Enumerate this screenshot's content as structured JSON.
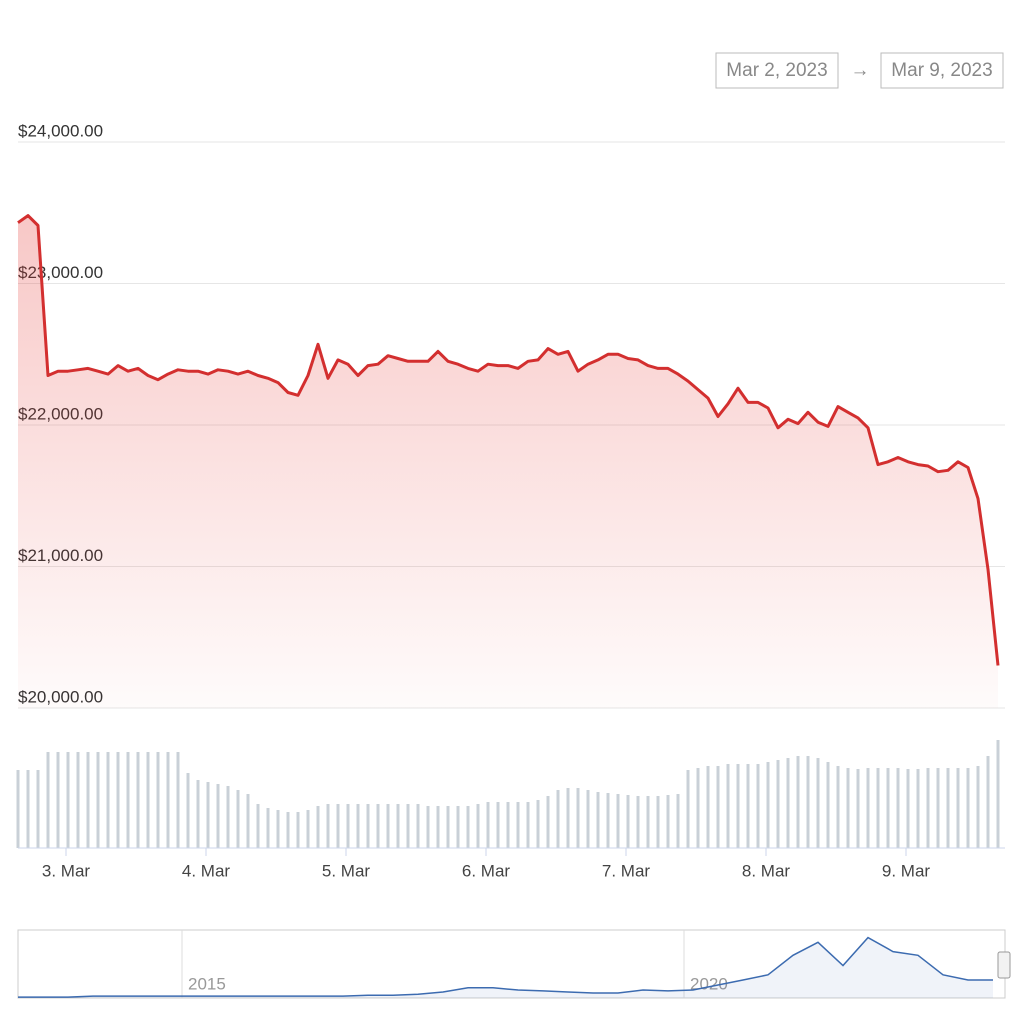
{
  "range": {
    "from": "Mar 2, 2023",
    "separator": "→",
    "to": "Mar 9, 2023"
  },
  "chart_data": [
    {
      "type": "line",
      "color": "#d32f2f",
      "values": [
        23430,
        23480,
        23410,
        22350,
        22380,
        22380,
        22390,
        22400,
        22380,
        22360,
        22420,
        22380,
        22400,
        22350,
        22320,
        22360,
        22390,
        22380,
        22380,
        22360,
        22390,
        22380,
        22360,
        22380,
        22350,
        22330,
        22300,
        22230,
        22210,
        22350,
        22570,
        22330,
        22460,
        22430,
        22350,
        22420,
        22430,
        22490,
        22470,
        22450,
        22450,
        22450,
        22520,
        22450,
        22430,
        22400,
        22380,
        22430,
        22420,
        22420,
        22400,
        22450,
        22460,
        22540,
        22500,
        22520,
        22380,
        22430,
        22460,
        22500,
        22500,
        22470,
        22460,
        22420,
        22400,
        22400,
        22360,
        22310,
        22250,
        22190,
        22060,
        22150,
        22260,
        22160,
        22160,
        22120,
        21980,
        22040,
        22010,
        22090,
        22020,
        21990,
        22130,
        22090,
        22050,
        21980,
        21720,
        21740,
        21770,
        21740,
        21720,
        21710,
        21670,
        21680,
        21740,
        21700,
        21480,
        20980,
        20300
      ],
      "xlim": [
        0,
        98.5
      ],
      "xticks": [
        {
          "value": 4.8,
          "label": "3. Mar"
        },
        {
          "value": 18.8,
          "label": "4. Mar"
        },
        {
          "value": 32.8,
          "label": "5. Mar"
        },
        {
          "value": 46.8,
          "label": "6. Mar"
        },
        {
          "value": 60.8,
          "label": "7. Mar"
        },
        {
          "value": 74.8,
          "label": "8. Mar"
        },
        {
          "value": 88.8,
          "label": "9. Mar"
        }
      ],
      "ylim": [
        20000,
        24000
      ],
      "yticks": [
        {
          "value": 20000,
          "label": "$20,000.00"
        },
        {
          "value": 21000,
          "label": "$21,000.00"
        },
        {
          "value": 22000,
          "label": "$22,000.00"
        },
        {
          "value": 23000,
          "label": "$23,000.00"
        },
        {
          "value": 24000,
          "label": "$24,000.00"
        }
      ],
      "grid": true
    },
    {
      "type": "bar",
      "color": "#c9d0d7",
      "xlim": [
        0,
        98.5
      ],
      "ylim": [
        0,
        140
      ],
      "values": [
        78,
        78,
        78,
        96,
        96,
        96,
        96,
        96,
        96,
        96,
        96,
        96,
        96,
        96,
        96,
        96,
        96,
        75,
        68,
        66,
        64,
        62,
        58,
        54,
        44,
        40,
        38,
        36,
        36,
        38,
        42,
        44,
        44,
        44,
        44,
        44,
        44,
        44,
        44,
        44,
        44,
        42,
        42,
        42,
        42,
        42,
        44,
        46,
        46,
        46,
        46,
        46,
        48,
        52,
        58,
        60,
        60,
        58,
        56,
        55,
        54,
        53,
        52,
        52,
        52,
        53,
        54,
        78,
        80,
        82,
        82,
        84,
        84,
        84,
        84,
        86,
        88,
        90,
        92,
        92,
        90,
        86,
        82,
        80,
        79,
        80,
        80,
        80,
        80,
        79,
        79,
        80,
        80,
        80,
        80,
        80,
        82,
        92,
        108
      ]
    },
    {
      "type": "area",
      "color": "#3c6bb0",
      "xlim": [
        0,
        39.4
      ],
      "ylim": [
        0,
        70000
      ],
      "xticks": [
        {
          "value": 6.56,
          "label": "2015"
        },
        {
          "value": 26.64,
          "label": "2020"
        }
      ],
      "values": [
        1000,
        1000,
        1000,
        2000,
        2000,
        2000,
        2000,
        2000,
        2000,
        2000,
        2000,
        2000,
        2000,
        2000,
        3000,
        3000,
        4000,
        6500,
        11000,
        11000,
        8600,
        7600,
        6500,
        5400,
        5400,
        8600,
        7600,
        8600,
        14000,
        19400,
        25000,
        46000,
        60000,
        35000,
        65000,
        50000,
        46000,
        25000,
        19400,
        19400
      ]
    }
  ]
}
